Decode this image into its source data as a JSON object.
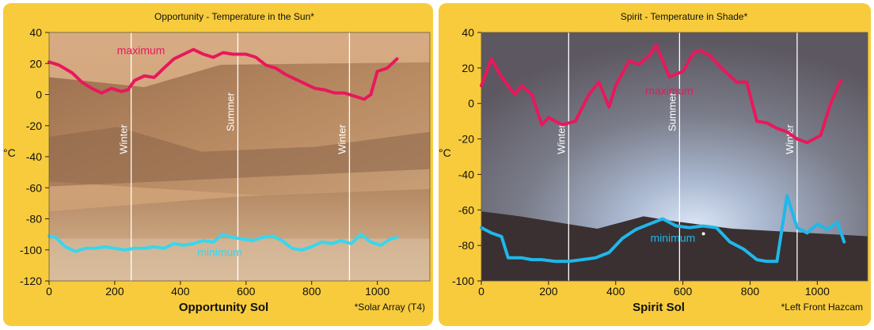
{
  "chart_data": [
    {
      "type": "line",
      "title": "Opportunity - Temperature in the Sun*",
      "xlabel": "Opportunity Sol",
      "ylabel": "°C",
      "footnote": "*Solar Array (T4)",
      "xlim": [
        0,
        1160
      ],
      "ylim": [
        -120,
        40
      ],
      "xticks": [
        "0",
        "200",
        "400",
        "600",
        "800",
        "1000"
      ],
      "yticks": [
        "40",
        "20",
        "0",
        "-20",
        "-40",
        "-60",
        "-80",
        "-100",
        "-120"
      ],
      "season_markers": [
        {
          "label": "Winter",
          "x": 250
        },
        {
          "label": "Summer",
          "x": 575
        },
        {
          "label": "Winter",
          "x": 915
        }
      ],
      "series": [
        {
          "name": "maximum",
          "color": "#e8185c",
          "x": [
            0,
            30,
            70,
            100,
            130,
            160,
            190,
            220,
            240,
            260,
            290,
            320,
            350,
            380,
            410,
            440,
            470,
            500,
            530,
            560,
            600,
            630,
            660,
            690,
            720,
            750,
            780,
            810,
            840,
            870,
            900,
            930,
            960,
            980,
            1000,
            1030,
            1060
          ],
          "values": [
            21,
            19,
            14,
            8,
            4,
            1,
            4,
            2,
            3,
            9,
            12,
            11,
            17,
            23,
            26,
            29,
            26,
            24,
            27,
            26,
            26,
            24,
            19,
            17,
            13,
            10,
            7,
            4,
            3,
            1,
            1,
            -1,
            -3,
            0,
            15,
            17,
            23
          ]
        },
        {
          "name": "minimum",
          "color": "#39d6ee",
          "x": [
            0,
            20,
            50,
            80,
            110,
            140,
            170,
            200,
            230,
            260,
            290,
            320,
            350,
            380,
            410,
            440,
            470,
            500,
            530,
            560,
            590,
            620,
            650,
            680,
            710,
            740,
            770,
            800,
            830,
            860,
            890,
            920,
            950,
            980,
            1010,
            1040,
            1060
          ],
          "values": [
            -91,
            -92,
            -98,
            -101,
            -99,
            -99,
            -98,
            -99,
            -100,
            -99,
            -99,
            -98,
            -99,
            -96,
            -97,
            -96,
            -94,
            -95,
            -90,
            -92,
            -93,
            -94,
            -92,
            -91,
            -94,
            -99,
            -100,
            -98,
            -95,
            -96,
            -94,
            -96,
            -90,
            -95,
            -97,
            -93,
            -92
          ]
        }
      ]
    },
    {
      "type": "line",
      "title": "Spirit - Temperature in Shade*",
      "xlabel": "Spirit Sol",
      "ylabel": "°C",
      "footnote": "*Left Front Hazcam",
      "xlim": [
        0,
        1150
      ],
      "ylim": [
        -100,
        40
      ],
      "xticks": [
        "0",
        "200",
        "400",
        "600",
        "800",
        "1000"
      ],
      "yticks": [
        "40",
        "20",
        "0",
        "-20",
        "-40",
        "-60",
        "-80",
        "-100"
      ],
      "season_markers": [
        {
          "label": "Winter",
          "x": 260
        },
        {
          "label": "Summer",
          "x": 590
        },
        {
          "label": "Winter",
          "x": 940
        }
      ],
      "series": [
        {
          "name": "maximum",
          "color": "#e8185c",
          "x": [
            0,
            30,
            60,
            100,
            120,
            150,
            180,
            200,
            240,
            260,
            280,
            320,
            350,
            380,
            400,
            440,
            470,
            500,
            520,
            560,
            600,
            630,
            650,
            680,
            720,
            760,
            790,
            820,
            850,
            880,
            910,
            940,
            970,
            990,
            1010,
            1040,
            1070
          ],
          "values": [
            10,
            25,
            15,
            5,
            10,
            5,
            -12,
            -8,
            -12,
            -11,
            -10,
            5,
            12,
            -2,
            10,
            24,
            22,
            27,
            33,
            15,
            18,
            28,
            30,
            27,
            19,
            12,
            12,
            -10,
            -11,
            -14,
            -16,
            -20,
            -22,
            -20,
            -18,
            0,
            13
          ]
        },
        {
          "name": "minimum",
          "color": "#1fb8ea",
          "x": [
            0,
            30,
            60,
            80,
            120,
            150,
            180,
            220,
            260,
            300,
            340,
            380,
            420,
            460,
            500,
            540,
            580,
            620,
            660,
            700,
            740,
            780,
            820,
            850,
            880,
            910,
            940,
            970,
            1000,
            1030,
            1060,
            1080
          ],
          "values": [
            -70,
            -73,
            -75,
            -87,
            -87,
            -88,
            -88,
            -89,
            -89,
            -88,
            -87,
            -84,
            -76,
            -71,
            -68,
            -65,
            -69,
            -70,
            -69,
            -70,
            -78,
            -82,
            -88,
            -89,
            -89,
            -52,
            -70,
            -73,
            -68,
            -71,
            -67,
            -78
          ]
        }
      ]
    }
  ]
}
